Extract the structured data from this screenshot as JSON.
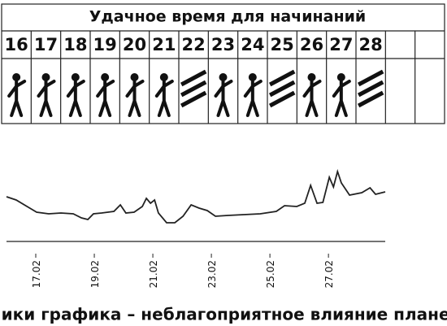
{
  "calendar": {
    "title": "Удачное время для начинаний",
    "days": [
      16,
      17,
      18,
      19,
      20,
      21,
      22,
      23,
      24,
      25,
      26,
      27,
      28
    ]
  },
  "chart_data": {
    "type": "line",
    "caption": "Пики графика – неблагоприятное влияние планет",
    "x": [
      16.0,
      16.33,
      16.75,
      17.03,
      17.44,
      17.86,
      18.28,
      18.56,
      18.78,
      18.97,
      19.25,
      19.67,
      19.89,
      20.08,
      20.36,
      20.64,
      20.78,
      20.92,
      21.06,
      21.19,
      21.47,
      21.75,
      22.03,
      22.31,
      22.58,
      22.86,
      23.14,
      23.56,
      24.11,
      24.67,
      25.22,
      25.5,
      25.92,
      26.19,
      26.39,
      26.61,
      26.81,
      27.03,
      27.17,
      27.31,
      27.44,
      27.72,
      28.14,
      28.42,
      28.61,
      28.94
    ],
    "series": [
      {
        "color": "#222222",
        "values": [
          58,
          54,
          45,
          39,
          37,
          38,
          37,
          32,
          30,
          37,
          38,
          40,
          48,
          38,
          39,
          46,
          56,
          50,
          54,
          38,
          26,
          26,
          34,
          48,
          44,
          41,
          34,
          35,
          36,
          37,
          40,
          47,
          46,
          50,
          72,
          50,
          51,
          82,
          70,
          89,
          75,
          60,
          63,
          69,
          61,
          64
        ]
      }
    ],
    "xlim": [
      16,
      28.94
    ],
    "xticks": [
      {
        "value": 17,
        "label": "17.02"
      },
      {
        "value": 19,
        "label": "19.02"
      },
      {
        "value": 21,
        "label": "21.02"
      },
      {
        "value": 23,
        "label": "23.02"
      },
      {
        "value": 25,
        "label": "25.02"
      },
      {
        "value": 27,
        "label": "27.02"
      }
    ],
    "ylim": [
      0,
      100
    ]
  }
}
